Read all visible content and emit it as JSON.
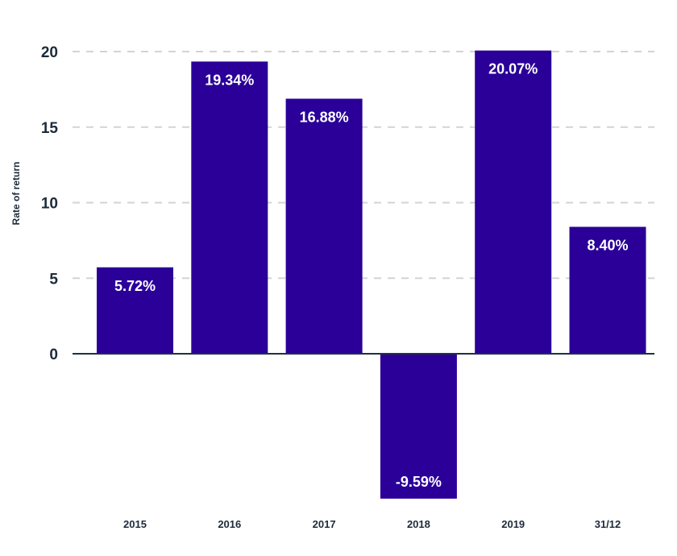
{
  "chart_data": {
    "type": "bar",
    "categories": [
      "2015",
      "2016",
      "2017",
      "2018",
      "2019",
      "31/12"
    ],
    "values": [
      5.72,
      19.34,
      16.88,
      -9.59,
      20.07,
      8.4
    ],
    "data_labels": [
      "5.72%",
      "19.34%",
      "16.88%",
      "-9.59%",
      "20.07%",
      "8.40%"
    ],
    "ylabel": "Rate of return",
    "xlabel": "",
    "yticks": [
      "0",
      "5",
      "10",
      "15",
      "20"
    ],
    "ylim": [
      -9.59,
      20.07
    ],
    "grid": true,
    "bar_color": "#2a0098",
    "grid_color": "#d3d3d3",
    "text_color": "#1d2b3a"
  }
}
